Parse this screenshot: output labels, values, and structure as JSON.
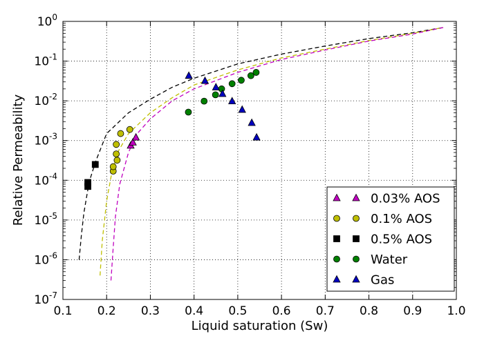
{
  "chart_data": {
    "type": "scatter",
    "title": "",
    "xlabel": "Liquid saturation (Sw)",
    "ylabel": "Relative Permeability",
    "xlim": [
      0.1,
      1.0
    ],
    "ylim": [
      1e-07,
      1
    ],
    "yscale": "log",
    "grid": true,
    "legend_position": "lower-right",
    "x_ticks": [
      "0.1",
      "0.2",
      "0.3",
      "0.4",
      "0.5",
      "0.6",
      "0.7",
      "0.8",
      "0.9",
      "1.0"
    ],
    "y_ticks": [
      {
        "base": "10",
        "exp": "-7"
      },
      {
        "base": "10",
        "exp": "-6"
      },
      {
        "base": "10",
        "exp": "-5"
      },
      {
        "base": "10",
        "exp": "-4"
      },
      {
        "base": "10",
        "exp": "-3"
      },
      {
        "base": "10",
        "exp": "-2"
      },
      {
        "base": "10",
        "exp": "-1"
      },
      {
        "base": "10",
        "exp": "0"
      }
    ],
    "series": [
      {
        "name": "0.03% AOS",
        "marker": "triangle",
        "color": "#bf00bf",
        "points": [
          [
            0.255,
            0.00075
          ],
          [
            0.26,
            0.0009
          ],
          [
            0.267,
            0.0012
          ]
        ]
      },
      {
        "name": "0.1% AOS",
        "marker": "circle",
        "color": "#bfbf00",
        "points": [
          [
            0.215,
            0.00017
          ],
          [
            0.215,
            0.00022
          ],
          [
            0.224,
            0.00032
          ],
          [
            0.222,
            0.00046
          ],
          [
            0.222,
            0.0008
          ],
          [
            0.232,
            0.0015
          ],
          [
            0.253,
            0.0019
          ]
        ]
      },
      {
        "name": "0.5% AOS",
        "marker": "square",
        "color": "#000000",
        "points": [
          [
            0.157,
            7e-05
          ],
          [
            0.157,
            8.8e-05
          ],
          [
            0.174,
            0.00025
          ]
        ]
      },
      {
        "name": "Water",
        "marker": "circle",
        "color": "#008000",
        "points": [
          [
            0.387,
            0.0052
          ],
          [
            0.423,
            0.0098
          ],
          [
            0.449,
            0.0142
          ],
          [
            0.463,
            0.02
          ],
          [
            0.487,
            0.027
          ],
          [
            0.508,
            0.033
          ],
          [
            0.53,
            0.043
          ],
          [
            0.542,
            0.052
          ]
        ]
      },
      {
        "name": "Gas",
        "marker": "triangle",
        "color": "#0000bf",
        "points": [
          [
            0.388,
            0.043
          ],
          [
            0.425,
            0.032
          ],
          [
            0.45,
            0.022
          ],
          [
            0.465,
            0.015
          ],
          [
            0.487,
            0.0098
          ],
          [
            0.51,
            0.006
          ],
          [
            0.532,
            0.0028
          ],
          [
            0.543,
            0.0012
          ]
        ]
      }
    ],
    "curves": [
      {
        "color": "#000000",
        "points": [
          [
            0.137,
            1e-06
          ],
          [
            0.142,
            4e-06
          ],
          [
            0.148,
            1.5e-05
          ],
          [
            0.16,
            9e-05
          ],
          [
            0.175,
            0.0003
          ],
          [
            0.2,
            0.0015
          ],
          [
            0.25,
            0.005
          ],
          [
            0.3,
            0.011
          ],
          [
            0.35,
            0.022
          ],
          [
            0.4,
            0.037
          ],
          [
            0.5,
            0.085
          ],
          [
            0.6,
            0.15
          ],
          [
            0.7,
            0.24
          ],
          [
            0.8,
            0.37
          ],
          [
            0.9,
            0.52
          ],
          [
            0.97,
            0.7
          ]
        ]
      },
      {
        "color": "#bfbf00",
        "points": [
          [
            0.185,
            4e-07
          ],
          [
            0.19,
            3e-06
          ],
          [
            0.2,
            3e-05
          ],
          [
            0.21,
            0.00012
          ],
          [
            0.225,
            0.0005
          ],
          [
            0.25,
            0.0015
          ],
          [
            0.3,
            0.005
          ],
          [
            0.35,
            0.012
          ],
          [
            0.4,
            0.025
          ],
          [
            0.5,
            0.06
          ],
          [
            0.6,
            0.12
          ],
          [
            0.7,
            0.2
          ],
          [
            0.8,
            0.33
          ],
          [
            0.9,
            0.5
          ],
          [
            0.97,
            0.7
          ]
        ]
      },
      {
        "color": "#bf00bf",
        "points": [
          [
            0.21,
            3e-07
          ],
          [
            0.215,
            2e-06
          ],
          [
            0.22,
            1.2e-05
          ],
          [
            0.23,
            8e-05
          ],
          [
            0.25,
            0.0005
          ],
          [
            0.27,
            0.0015
          ],
          [
            0.3,
            0.0035
          ],
          [
            0.35,
            0.01
          ],
          [
            0.4,
            0.02
          ],
          [
            0.5,
            0.052
          ],
          [
            0.6,
            0.11
          ],
          [
            0.7,
            0.19
          ],
          [
            0.8,
            0.32
          ],
          [
            0.9,
            0.48
          ],
          [
            0.97,
            0.7
          ]
        ]
      }
    ]
  }
}
